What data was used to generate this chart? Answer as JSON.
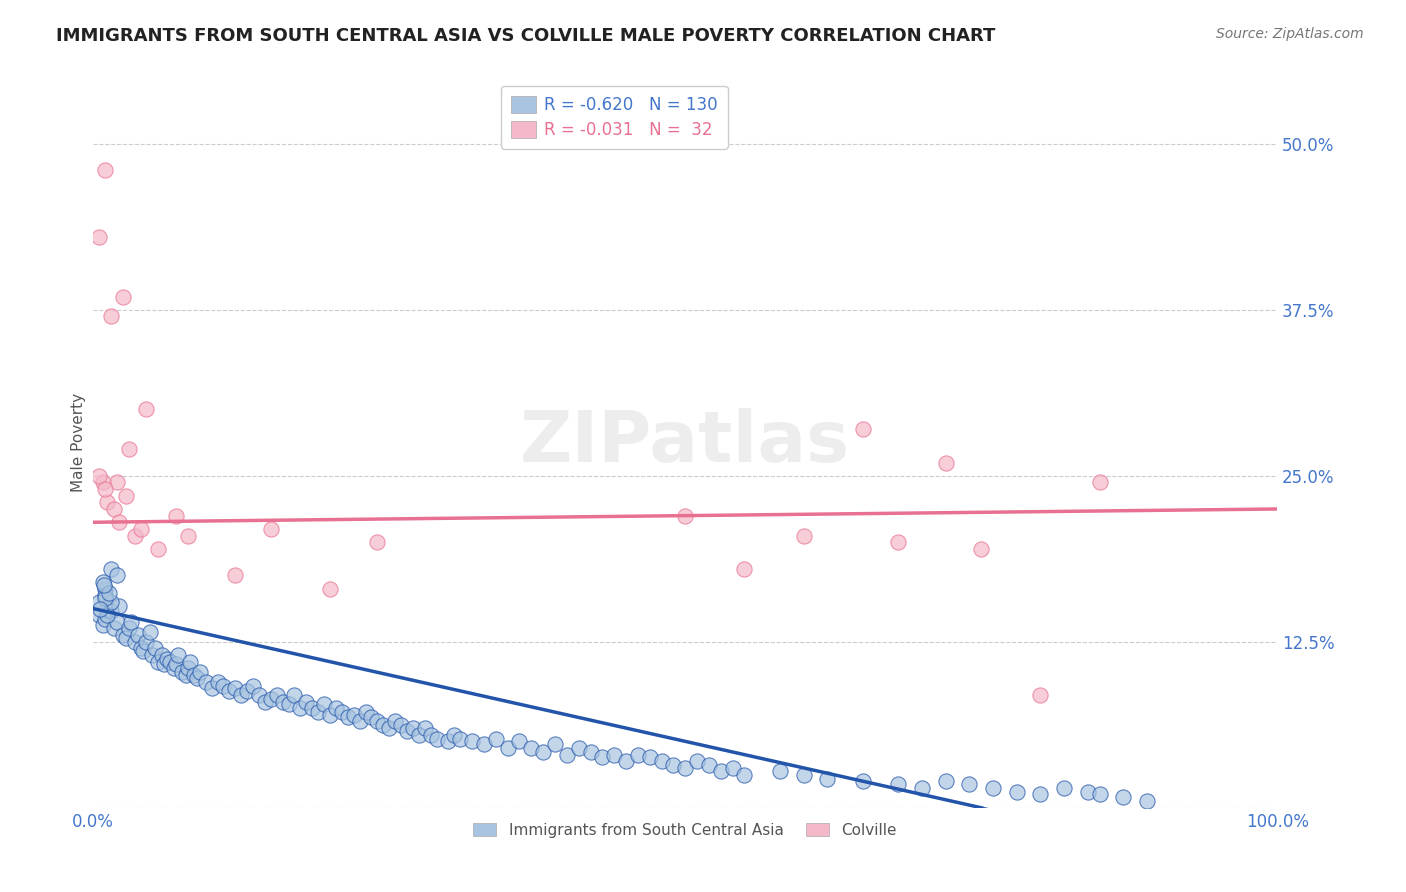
{
  "title": "IMMIGRANTS FROM SOUTH CENTRAL ASIA VS COLVILLE MALE POVERTY CORRELATION CHART",
  "source": "Source: ZipAtlas.com",
  "xlabel": "",
  "ylabel": "Male Poverty",
  "xlim": [
    0,
    100
  ],
  "ylim": [
    0,
    55
  ],
  "xticks": [
    0,
    25,
    50,
    75,
    100
  ],
  "xticklabels": [
    "0.0%",
    "",
    "",
    "",
    "100.0%"
  ],
  "yticks": [
    0,
    12.5,
    25.0,
    37.5,
    50.0
  ],
  "yticklabels": [
    "",
    "12.5%",
    "25.0%",
    "37.5%",
    "50.0%"
  ],
  "blue_R": -0.62,
  "blue_N": 130,
  "pink_R": -0.031,
  "pink_N": 32,
  "blue_color": "#a8c4e0",
  "pink_color": "#f4b8c8",
  "blue_line_color": "#2255aa",
  "pink_line_color": "#e87090",
  "label_color": "#4477cc",
  "watermark": "ZIPatlas",
  "legend_label_blue": "Immigrants from South Central Asia",
  "legend_label_pink": "Colville",
  "blue_scatter_x": [
    0.5,
    0.8,
    1.0,
    1.2,
    1.5,
    1.8,
    2.0,
    2.2,
    2.5,
    2.8,
    3.0,
    3.2,
    3.5,
    3.8,
    4.0,
    4.2,
    4.5,
    4.8,
    5.0,
    5.2,
    5.5,
    5.8,
    6.0,
    6.2,
    6.5,
    6.8,
    7.0,
    7.2,
    7.5,
    7.8,
    8.0,
    8.2,
    8.5,
    8.8,
    9.0,
    9.5,
    10.0,
    10.5,
    11.0,
    11.5,
    12.0,
    12.5,
    13.0,
    13.5,
    14.0,
    14.5,
    15.0,
    15.5,
    16.0,
    16.5,
    17.0,
    17.5,
    18.0,
    18.5,
    19.0,
    19.5,
    20.0,
    20.5,
    21.0,
    21.5,
    22.0,
    22.5,
    23.0,
    23.5,
    24.0,
    24.5,
    25.0,
    25.5,
    26.0,
    26.5,
    27.0,
    27.5,
    28.0,
    28.5,
    29.0,
    30.0,
    30.5,
    31.0,
    32.0,
    33.0,
    34.0,
    35.0,
    36.0,
    37.0,
    38.0,
    39.0,
    40.0,
    41.0,
    42.0,
    43.0,
    44.0,
    45.0,
    46.0,
    47.0,
    48.0,
    49.0,
    50.0,
    51.0,
    52.0,
    53.0,
    54.0,
    55.0,
    58.0,
    60.0,
    62.0,
    65.0,
    68.0,
    70.0,
    72.0,
    74.0,
    76.0,
    78.0,
    80.0,
    82.0,
    84.0,
    85.0,
    87.0,
    89.0,
    1.0,
    1.5,
    2.0,
    0.5,
    1.0,
    1.2,
    1.5,
    0.8,
    1.0,
    1.3,
    0.6,
    0.9
  ],
  "blue_scatter_y": [
    14.5,
    13.8,
    14.2,
    15.0,
    14.8,
    13.5,
    14.0,
    15.2,
    13.0,
    12.8,
    13.5,
    14.0,
    12.5,
    13.0,
    12.0,
    11.8,
    12.5,
    13.2,
    11.5,
    12.0,
    11.0,
    11.5,
    10.8,
    11.2,
    11.0,
    10.5,
    10.8,
    11.5,
    10.2,
    10.0,
    10.5,
    11.0,
    10.0,
    9.8,
    10.2,
    9.5,
    9.0,
    9.5,
    9.2,
    8.8,
    9.0,
    8.5,
    8.8,
    9.2,
    8.5,
    8.0,
    8.2,
    8.5,
    8.0,
    7.8,
    8.5,
    7.5,
    8.0,
    7.5,
    7.2,
    7.8,
    7.0,
    7.5,
    7.2,
    6.8,
    7.0,
    6.5,
    7.2,
    6.8,
    6.5,
    6.2,
    6.0,
    6.5,
    6.2,
    5.8,
    6.0,
    5.5,
    6.0,
    5.5,
    5.2,
    5.0,
    5.5,
    5.2,
    5.0,
    4.8,
    5.2,
    4.5,
    5.0,
    4.5,
    4.2,
    4.8,
    4.0,
    4.5,
    4.2,
    3.8,
    4.0,
    3.5,
    4.0,
    3.8,
    3.5,
    3.2,
    3.0,
    3.5,
    3.2,
    2.8,
    3.0,
    2.5,
    2.8,
    2.5,
    2.2,
    2.0,
    1.8,
    1.5,
    2.0,
    1.8,
    1.5,
    1.2,
    1.0,
    1.5,
    1.2,
    1.0,
    0.8,
    0.5,
    16.5,
    18.0,
    17.5,
    15.5,
    16.0,
    14.5,
    15.5,
    17.0,
    15.8,
    16.2,
    15.0,
    16.8
  ],
  "pink_scatter_x": [
    0.5,
    1.5,
    2.5,
    4.5,
    1.0,
    3.0,
    2.0,
    5.5,
    8.0,
    15.0,
    24.0,
    55.0,
    60.0,
    68.0,
    75.0,
    80.0,
    0.8,
    1.2,
    1.8,
    2.2,
    3.5,
    0.5,
    1.0,
    2.8,
    4.0,
    7.0,
    12.0,
    20.0,
    50.0,
    65.0,
    72.0,
    85.0
  ],
  "pink_scatter_y": [
    43.0,
    37.0,
    38.5,
    30.0,
    48.0,
    27.0,
    24.5,
    19.5,
    20.5,
    21.0,
    20.0,
    18.0,
    20.5,
    20.0,
    19.5,
    8.5,
    24.5,
    23.0,
    22.5,
    21.5,
    20.5,
    25.0,
    24.0,
    23.5,
    21.0,
    22.0,
    17.5,
    16.5,
    22.0,
    28.5,
    26.0,
    24.5
  ]
}
